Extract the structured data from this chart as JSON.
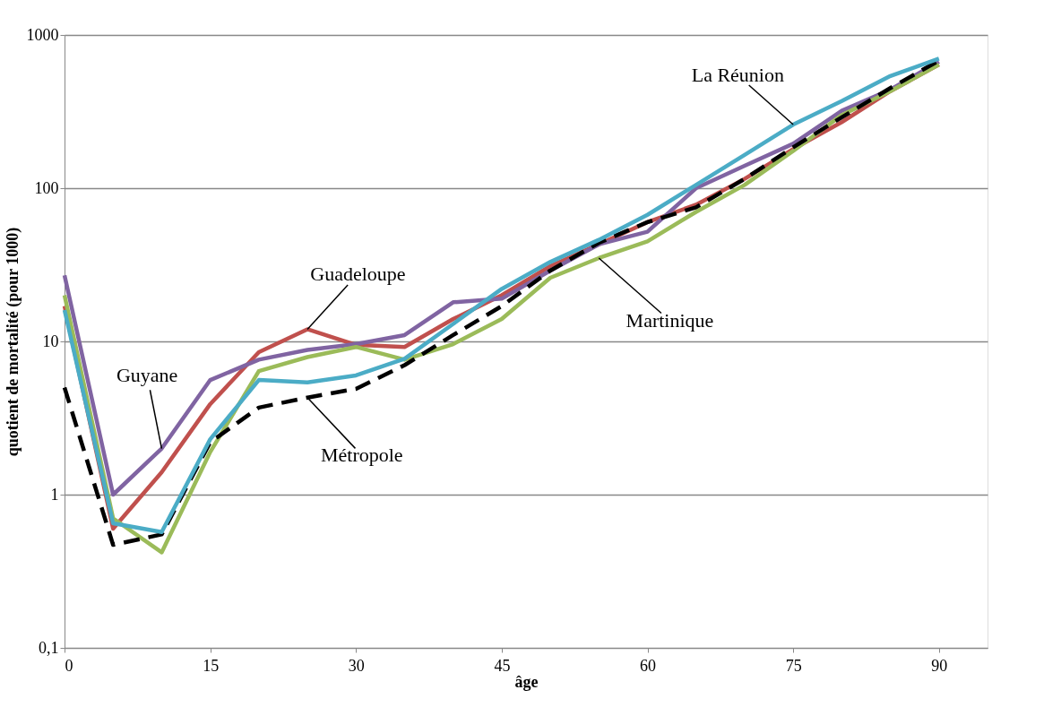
{
  "chart_data": {
    "type": "line",
    "xlabel": "âge",
    "ylabel": "quotient de mortalité (pour 1000)",
    "x": [
      0,
      5,
      10,
      15,
      20,
      25,
      30,
      35,
      40,
      45,
      50,
      55,
      60,
      65,
      70,
      75,
      80,
      85,
      90
    ],
    "series": [
      {
        "name": "Guadeloupe",
        "color": "#c0504d",
        "values": [
          17,
          0.6,
          1.4,
          3.9,
          8.5,
          12,
          9.5,
          9.2,
          14,
          20,
          31,
          43,
          60,
          78,
          115,
          180,
          270,
          430,
          640
        ]
      },
      {
        "name": "Guyane",
        "color": "#8064a2",
        "values": [
          27,
          1.0,
          2.0,
          5.6,
          7.6,
          8.8,
          9.6,
          11,
          18,
          19,
          29,
          43,
          52,
          100,
          140,
          195,
          320,
          440,
          670
        ]
      },
      {
        "name": "Martinique",
        "color": "#9bbb59",
        "values": [
          20,
          0.7,
          0.42,
          1.9,
          6.4,
          7.9,
          9.2,
          7.6,
          9.6,
          14,
          26,
          35,
          45,
          70,
          105,
          175,
          300,
          430,
          640
        ]
      },
      {
        "name": "Métropole",
        "color": "#000000",
        "line_style": "dashed",
        "values": [
          5,
          0.47,
          0.55,
          2.2,
          3.7,
          4.3,
          4.9,
          7.0,
          11,
          17,
          29,
          44,
          60,
          75,
          115,
          185,
          290,
          450,
          680
        ]
      },
      {
        "name": "La Réunion",
        "color": "#4bacc6",
        "values": [
          16,
          0.65,
          0.57,
          2.3,
          5.6,
          5.4,
          6.0,
          7.7,
          13,
          22,
          33,
          46,
          67,
          105,
          165,
          260,
          370,
          540,
          700
        ]
      }
    ],
    "log": "y",
    "xlim": [
      0,
      95
    ],
    "xticks": [
      0,
      15,
      30,
      45,
      60,
      75,
      90
    ],
    "ylim": [
      0.1,
      1000
    ],
    "yticks": [
      {
        "value": 0.1,
        "label": "0,1"
      },
      1,
      10,
      100,
      1000
    ],
    "grid": "y",
    "legend": false,
    "marker": "none",
    "line_style": "solid"
  }
}
